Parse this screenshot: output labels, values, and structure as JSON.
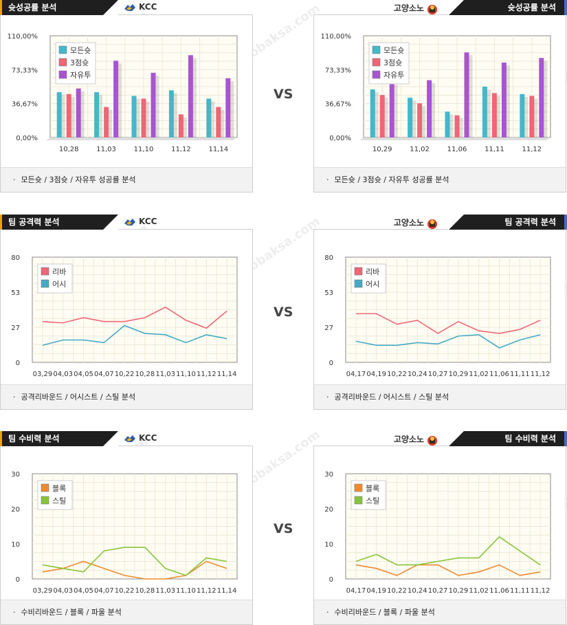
{
  "vs_label": "VS",
  "teams": {
    "left": "KCC",
    "right": "고양소노"
  },
  "watermark": {
    "ko": "토토박사",
    "en": "totobaksa.com"
  },
  "sections": [
    {
      "title": "슛성공률 분석",
      "footer": "모든슛 / 3점슛 / 자유투 성공률 분석"
    },
    {
      "title": "팀 공격력 분석",
      "footer": "공격리바운드 / 어시스트 / 스틸 분석"
    },
    {
      "title": "팀 수비력 분석",
      "footer": "수비리바운드 / 블록 / 파울 분석"
    }
  ],
  "chart_data": [
    {
      "type": "bar",
      "team": "KCC",
      "categories": [
        "10,28",
        "11,03",
        "11,10",
        "11,12",
        "11,14"
      ],
      "yticks": [
        "0,00%",
        "36,67%",
        "73,33%",
        "110,00%"
      ],
      "ylim": [
        0,
        110
      ],
      "legend_position": "top-left",
      "series": [
        {
          "name": "모든슛",
          "color": "#44b8c8",
          "values": [
            49,
            49,
            45,
            51,
            42
          ]
        },
        {
          "name": "3점슛",
          "color": "#ee6677",
          "values": [
            47,
            33,
            42,
            25,
            33
          ]
        },
        {
          "name": "자유투",
          "color": "#a855d0",
          "values": [
            53,
            83,
            70,
            89,
            64
          ]
        }
      ]
    },
    {
      "type": "bar",
      "team": "고양소노",
      "categories": [
        "10,29",
        "11,02",
        "11,06",
        "11,11",
        "11,12"
      ],
      "yticks": [
        "0,00%",
        "36,67%",
        "73,33%",
        "110,00%"
      ],
      "ylim": [
        0,
        110
      ],
      "legend_position": "top-left",
      "series": [
        {
          "name": "모든슛",
          "color": "#44b8c8",
          "values": [
            52,
            43,
            28,
            55,
            47
          ]
        },
        {
          "name": "3점슛",
          "color": "#ee6677",
          "values": [
            46,
            37,
            24,
            48,
            45
          ]
        },
        {
          "name": "자유투",
          "color": "#a855d0",
          "values": [
            60,
            62,
            92,
            81,
            86
          ]
        }
      ]
    },
    {
      "type": "line",
      "team": "KCC",
      "categories": [
        "03,29",
        "04,03",
        "04,05",
        "04,07",
        "10,22",
        "10,28",
        "11,03",
        "11,10",
        "11,12",
        "11,14"
      ],
      "yticks": [
        "0",
        "27",
        "53",
        "80"
      ],
      "ylim": [
        0,
        80
      ],
      "legend_position": "top-left",
      "series": [
        {
          "name": "리바",
          "color": "#ee6677",
          "values": [
            31,
            30,
            34,
            31,
            31,
            34,
            42,
            32,
            26,
            39
          ]
        },
        {
          "name": "어시",
          "color": "#44aac4",
          "values": [
            13,
            17,
            17,
            15,
            28,
            22,
            21,
            15,
            21,
            18
          ]
        }
      ]
    },
    {
      "type": "line",
      "team": "고양소노",
      "categories": [
        "04,17",
        "04,19",
        "10,22",
        "10,24",
        "10,27",
        "10,29",
        "11,02",
        "11,06",
        "11,11",
        "11,12"
      ],
      "yticks": [
        "0",
        "27",
        "53",
        "80"
      ],
      "ylim": [
        0,
        80
      ],
      "legend_position": "top-left",
      "series": [
        {
          "name": "리바",
          "color": "#ee6677",
          "values": [
            37,
            37,
            29,
            32,
            22,
            31,
            24,
            22,
            25,
            32
          ]
        },
        {
          "name": "어시",
          "color": "#44aac4",
          "values": [
            16,
            13,
            13,
            15,
            14,
            20,
            21,
            11,
            17,
            21
          ]
        }
      ]
    },
    {
      "type": "line",
      "team": "KCC",
      "categories": [
        "03,29",
        "04,03",
        "04,05",
        "04,07",
        "10,22",
        "10,28",
        "11,03",
        "11,10",
        "11,12",
        "11,14"
      ],
      "yticks": [
        "0",
        "10",
        "20",
        "30"
      ],
      "ylim": [
        0,
        30
      ],
      "legend_position": "top-left",
      "series": [
        {
          "name": "블록",
          "color": "#f08a30",
          "values": [
            2,
            3,
            5,
            3,
            1,
            0,
            0,
            1,
            5,
            3
          ]
        },
        {
          "name": "스틸",
          "color": "#88c43a",
          "values": [
            4,
            3,
            2,
            8,
            9,
            9,
            3,
            1,
            6,
            5
          ]
        }
      ]
    },
    {
      "type": "line",
      "team": "고양소노",
      "categories": [
        "04,17",
        "04,19",
        "10,22",
        "10,24",
        "10,27",
        "10,29",
        "11,02",
        "11,06",
        "11,11",
        "11,12"
      ],
      "yticks": [
        "0",
        "10",
        "20",
        "30"
      ],
      "ylim": [
        0,
        30
      ],
      "legend_position": "top-left",
      "series": [
        {
          "name": "블록",
          "color": "#f08a30",
          "values": [
            4,
            3,
            1,
            4,
            4,
            1,
            2,
            4,
            1,
            2
          ]
        },
        {
          "name": "스틸",
          "color": "#88c43a",
          "values": [
            5,
            7,
            4,
            4,
            5,
            6,
            6,
            12,
            8,
            4
          ]
        }
      ]
    }
  ]
}
